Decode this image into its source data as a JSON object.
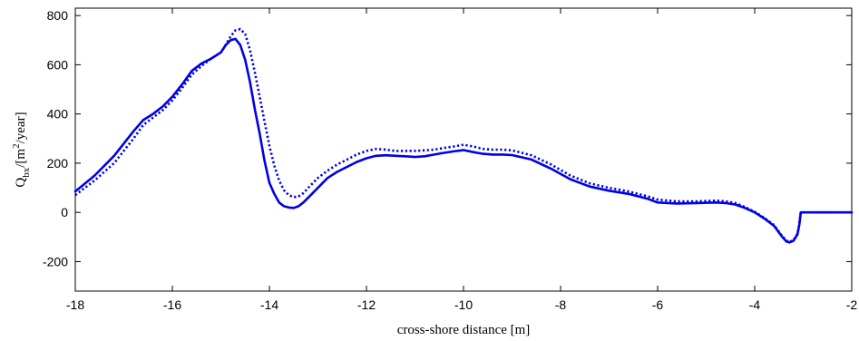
{
  "chart_data": {
    "type": "line",
    "title": "",
    "xlabel": "cross-shore distance [m]",
    "ylabel": {
      "main": "Q",
      "sub": "bx",
      "slash": "/[m",
      "sup": "2",
      "tail": "/year]"
    },
    "xlim": [
      -18,
      -2
    ],
    "ylim": [
      -320,
      830
    ],
    "xticks": [
      -18,
      -16,
      -14,
      -12,
      -10,
      -8,
      -6,
      -4,
      -2
    ],
    "yticks": [
      -200,
      0,
      200,
      400,
      600,
      800
    ],
    "grid": false,
    "legend": "none",
    "color": "#0000e6",
    "series": [
      {
        "style": "solid",
        "points": [
          [
            -18.0,
            85
          ],
          [
            -17.6,
            150
          ],
          [
            -17.2,
            230
          ],
          [
            -16.8,
            330
          ],
          [
            -16.6,
            375
          ],
          [
            -16.4,
            400
          ],
          [
            -16.2,
            430
          ],
          [
            -16.0,
            470
          ],
          [
            -15.8,
            520
          ],
          [
            -15.6,
            575
          ],
          [
            -15.4,
            605
          ],
          [
            -15.2,
            625
          ],
          [
            -15.0,
            650
          ],
          [
            -14.9,
            680
          ],
          [
            -14.8,
            700
          ],
          [
            -14.7,
            705
          ],
          [
            -14.6,
            680
          ],
          [
            -14.5,
            620
          ],
          [
            -14.4,
            530
          ],
          [
            -14.3,
            420
          ],
          [
            -14.2,
            320
          ],
          [
            -14.1,
            210
          ],
          [
            -14.0,
            120
          ],
          [
            -13.9,
            75
          ],
          [
            -13.8,
            40
          ],
          [
            -13.7,
            25
          ],
          [
            -13.6,
            20
          ],
          [
            -13.5,
            18
          ],
          [
            -13.4,
            25
          ],
          [
            -13.3,
            40
          ],
          [
            -13.2,
            60
          ],
          [
            -13.0,
            100
          ],
          [
            -12.8,
            140
          ],
          [
            -12.6,
            165
          ],
          [
            -12.4,
            185
          ],
          [
            -12.2,
            205
          ],
          [
            -12.0,
            220
          ],
          [
            -11.8,
            230
          ],
          [
            -11.6,
            232
          ],
          [
            -11.4,
            230
          ],
          [
            -11.2,
            228
          ],
          [
            -11.0,
            225
          ],
          [
            -10.8,
            228
          ],
          [
            -10.6,
            235
          ],
          [
            -10.4,
            242
          ],
          [
            -10.2,
            248
          ],
          [
            -10.0,
            253
          ],
          [
            -9.8,
            245
          ],
          [
            -9.6,
            238
          ],
          [
            -9.4,
            235
          ],
          [
            -9.2,
            235
          ],
          [
            -9.0,
            233
          ],
          [
            -8.6,
            215
          ],
          [
            -8.2,
            178
          ],
          [
            -7.8,
            135
          ],
          [
            -7.4,
            105
          ],
          [
            -7.0,
            88
          ],
          [
            -6.6,
            75
          ],
          [
            -6.2,
            55
          ],
          [
            -6.0,
            40
          ],
          [
            -5.6,
            36
          ],
          [
            -5.2,
            38
          ],
          [
            -4.8,
            40
          ],
          [
            -4.6,
            38
          ],
          [
            -4.4,
            32
          ],
          [
            -4.2,
            18
          ],
          [
            -4.0,
            0
          ],
          [
            -3.8,
            -25
          ],
          [
            -3.6,
            -55
          ],
          [
            -3.45,
            -95
          ],
          [
            -3.35,
            -118
          ],
          [
            -3.28,
            -122
          ],
          [
            -3.2,
            -115
          ],
          [
            -3.12,
            -90
          ],
          [
            -3.08,
            -50
          ],
          [
            -3.05,
            0
          ],
          [
            -2.0,
            0
          ]
        ]
      },
      {
        "style": "dotted",
        "points": [
          [
            -18.0,
            70
          ],
          [
            -17.6,
            130
          ],
          [
            -17.2,
            200
          ],
          [
            -16.8,
            300
          ],
          [
            -16.6,
            355
          ],
          [
            -16.4,
            385
          ],
          [
            -16.2,
            415
          ],
          [
            -16.0,
            455
          ],
          [
            -15.8,
            505
          ],
          [
            -15.6,
            560
          ],
          [
            -15.4,
            595
          ],
          [
            -15.2,
            625
          ],
          [
            -15.0,
            650
          ],
          [
            -14.9,
            680
          ],
          [
            -14.8,
            715
          ],
          [
            -14.7,
            740
          ],
          [
            -14.6,
            745
          ],
          [
            -14.5,
            725
          ],
          [
            -14.4,
            660
          ],
          [
            -14.3,
            570
          ],
          [
            -14.2,
            470
          ],
          [
            -14.1,
            370
          ],
          [
            -14.0,
            270
          ],
          [
            -13.9,
            190
          ],
          [
            -13.8,
            130
          ],
          [
            -13.7,
            90
          ],
          [
            -13.6,
            70
          ],
          [
            -13.5,
            62
          ],
          [
            -13.4,
            65
          ],
          [
            -13.3,
            78
          ],
          [
            -13.2,
            100
          ],
          [
            -13.0,
            140
          ],
          [
            -12.8,
            170
          ],
          [
            -12.6,
            195
          ],
          [
            -12.4,
            215
          ],
          [
            -12.2,
            235
          ],
          [
            -12.0,
            250
          ],
          [
            -11.8,
            258
          ],
          [
            -11.6,
            255
          ],
          [
            -11.4,
            250
          ],
          [
            -11.2,
            250
          ],
          [
            -11.0,
            250
          ],
          [
            -10.8,
            252
          ],
          [
            -10.6,
            255
          ],
          [
            -10.4,
            262
          ],
          [
            -10.2,
            268
          ],
          [
            -10.0,
            275
          ],
          [
            -9.8,
            268
          ],
          [
            -9.6,
            258
          ],
          [
            -9.4,
            255
          ],
          [
            -9.2,
            255
          ],
          [
            -9.0,
            252
          ],
          [
            -8.6,
            232
          ],
          [
            -8.2,
            195
          ],
          [
            -7.8,
            150
          ],
          [
            -7.4,
            118
          ],
          [
            -7.0,
            100
          ],
          [
            -6.6,
            85
          ],
          [
            -6.2,
            65
          ],
          [
            -6.0,
            52
          ],
          [
            -5.6,
            45
          ],
          [
            -5.2,
            45
          ],
          [
            -4.8,
            48
          ],
          [
            -4.6,
            45
          ],
          [
            -4.4,
            38
          ],
          [
            -4.2,
            22
          ],
          [
            -4.0,
            2
          ],
          [
            -3.8,
            -22
          ],
          [
            -3.6,
            -52
          ],
          [
            -3.45,
            -92
          ],
          [
            -3.35,
            -115
          ],
          [
            -3.28,
            -120
          ],
          [
            -3.2,
            -112
          ],
          [
            -3.12,
            -88
          ],
          [
            -3.08,
            -48
          ],
          [
            -3.05,
            0
          ],
          [
            -2.0,
            0
          ]
        ]
      }
    ]
  }
}
